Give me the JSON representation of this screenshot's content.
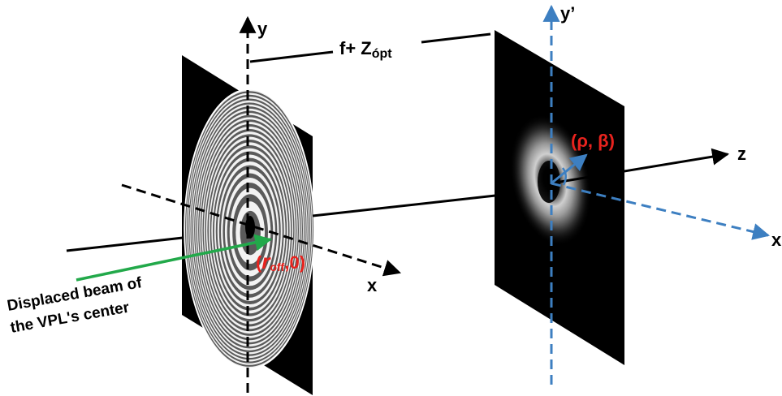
{
  "diagram": {
    "axis_labels": {
      "y_left": "y",
      "x_left": "x",
      "y_right": "y’",
      "z": "z",
      "x_right": "x"
    },
    "distance_label": {
      "prefix": "f+ Z",
      "subscript": "ópt"
    },
    "offset_label": {
      "open": "(",
      "symbol": "r",
      "subscript": "off",
      "rest": ",0)"
    },
    "polar_label": "(ρ, β)",
    "beam_caption": {
      "line1": "Displaced beam of",
      "line2": "the VPL's center"
    },
    "colors": {
      "axis": "#000000",
      "plate": "#000000",
      "beam": "#22a94a",
      "secondary_axes": "#3d7fc1",
      "highlight_text": "#e8231e"
    },
    "ring_count": 40
  }
}
